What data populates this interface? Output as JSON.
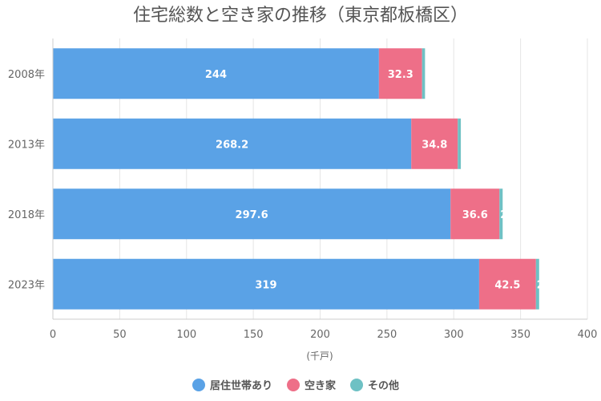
{
  "chart_data": {
    "type": "bar",
    "orientation": "horizontal",
    "stacked": true,
    "title": "住宅総数と空き家の推移（東京都板橋区）",
    "xlabel": "(千戸)",
    "xlim": [
      0,
      400
    ],
    "x_ticks": [
      "0",
      "50",
      "100",
      "150",
      "200",
      "250",
      "300",
      "350",
      "400"
    ],
    "x_tick_values": [
      0,
      50,
      100,
      150,
      200,
      250,
      300,
      350,
      400
    ],
    "categories": [
      "2008年",
      "2013年",
      "2018年",
      "2023年"
    ],
    "series": [
      {
        "name": "居住世帯あり",
        "color": "#5aa2e6",
        "values": [
          244,
          268.2,
          297.6,
          319
        ],
        "labels": [
          "244",
          "268.2",
          "297.6",
          "319"
        ]
      },
      {
        "name": "空き家",
        "color": "#ee6f88",
        "values": [
          32.3,
          34.8,
          36.6,
          42.5
        ],
        "labels": [
          "32.3",
          "34.8",
          "36.6",
          "42.5"
        ]
      },
      {
        "name": "その他",
        "color": "#6ec1c4",
        "values": [
          2.2,
          2.3,
          2.4,
          2.4
        ],
        "labels": [
          "",
          "",
          "2",
          "2."
        ]
      }
    ],
    "grid": true,
    "legend": "bottom"
  }
}
